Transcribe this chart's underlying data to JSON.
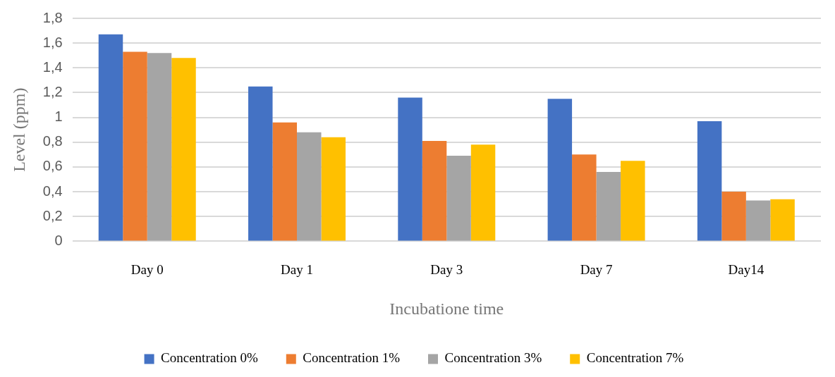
{
  "chart_data": {
    "type": "bar",
    "xlabel": "Incubatione time",
    "ylabel": "Level (ppm)",
    "categories": [
      "Day 0",
      "Day 1",
      "Day 3",
      "Day 7",
      "Day14"
    ],
    "series": [
      {
        "name": "Concentration 0%",
        "color": "#4472c4",
        "values": [
          1.67,
          1.25,
          1.16,
          1.15,
          0.97
        ]
      },
      {
        "name": "Concentration 1%",
        "color": "#ed7d31",
        "values": [
          1.53,
          0.96,
          0.81,
          0.7,
          0.4
        ]
      },
      {
        "name": "Concentration 3%",
        "color": "#a5a5a5",
        "values": [
          1.52,
          0.88,
          0.69,
          0.56,
          0.33
        ]
      },
      {
        "name": "Concentration 7%",
        "color": "#ffc000",
        "values": [
          1.48,
          0.84,
          0.78,
          0.65,
          0.34
        ]
      }
    ],
    "ylim": [
      0,
      1.8
    ],
    "yticks": [
      0,
      {
        "value": 0.2,
        "label": "0,2"
      },
      {
        "value": 0.4,
        "label": "0,4"
      },
      {
        "value": 0.6,
        "label": "0,6"
      },
      {
        "value": 0.8,
        "label": "0,8"
      },
      1,
      {
        "value": 1.2,
        "label": "1,2"
      },
      {
        "value": 1.4,
        "label": "1,4"
      },
      {
        "value": 1.6,
        "label": "1,6"
      },
      {
        "value": 1.8,
        "label": "1,8"
      }
    ],
    "grid": "y",
    "legend": "bottom"
  }
}
